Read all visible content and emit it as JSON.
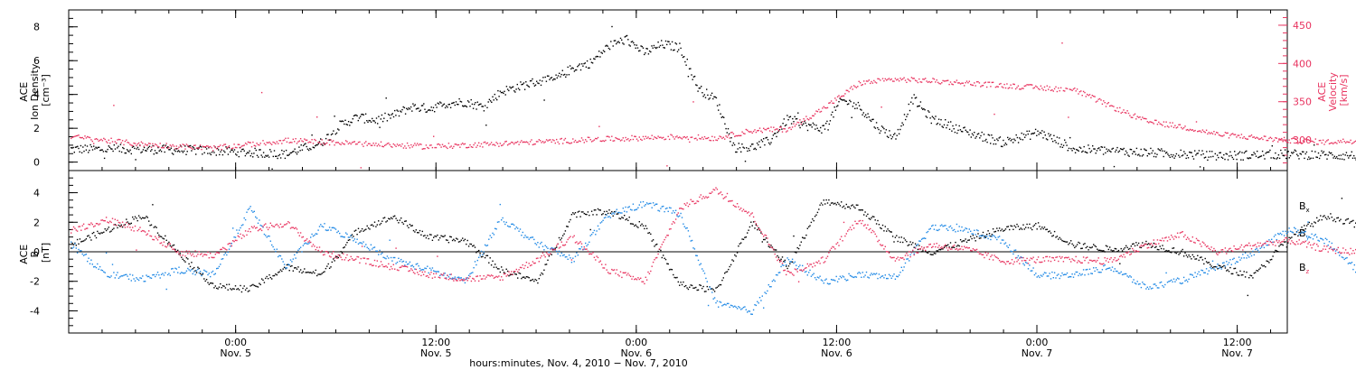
{
  "colors": {
    "density": "#000000",
    "velocity": "#e8335f",
    "bx": "#000000",
    "by": "#1e88e5",
    "bz": "#e8335f"
  },
  "chart_data": [
    {
      "type": "scatter",
      "panel": "top",
      "ylabel_lines": [
        "ACE",
        "Ion Density",
        "[cm⁻³]"
      ],
      "y2label_lines": [
        "ACE",
        "Velocity",
        "[km/s]"
      ],
      "ylim": [
        -0.5,
        9
      ],
      "yticks": [
        0,
        2,
        4,
        6,
        8
      ],
      "y2lim": [
        260,
        470
      ],
      "y2ticks": [
        300,
        350,
        400,
        450
      ],
      "series": [
        {
          "axis": "left",
          "color": "#000000",
          "anchors_h": [
            0,
            4,
            8,
            12,
            14,
            15,
            16,
            17,
            18,
            19,
            20,
            21,
            22,
            23,
            24,
            25,
            26,
            27,
            28,
            29,
            30,
            31,
            32,
            33,
            34,
            35,
            36,
            37,
            38,
            39,
            40,
            41,
            42,
            43,
            44,
            45,
            46,
            47,
            48,
            50,
            52,
            54,
            56,
            60,
            64,
            68,
            72,
            74,
            76,
            80,
            84,
            88,
            92,
            96,
            98,
            100,
            104,
            108,
            112,
            116,
            118,
            120,
            124,
            128,
            130,
            132,
            133
          ],
          "anchors_y": [
            0.8,
            0.8,
            0.7,
            0.5,
            1.2,
            2.2,
            2.7,
            2.5,
            2.8,
            3.3,
            3.2,
            3.5,
            3.6,
            3.3,
            4.2,
            4.5,
            4.8,
            4.9,
            5.6,
            5.9,
            6.9,
            7.3,
            6.5,
            7.0,
            6.8,
            4.4,
            3.7,
            0.9,
            0.9,
            1.3,
            2.6,
            2.2,
            2.0,
            3.7,
            3.3,
            2.1,
            1.5,
            3.8,
            2.6,
            1.8,
            1.2,
            1.8,
            0.8,
            0.6,
            0.4,
            0.5,
            0.4,
            0.5,
            0.6,
            0.7,
            0.8,
            0.9,
            0.7,
            1.1,
            0.8,
            0.8,
            0.6,
            0.5,
            0.3,
            0.3,
            0.3,
            0.3,
            0.3,
            0.4,
            0.4,
            0.5,
            0.5
          ]
        },
        {
          "axis": "right",
          "color": "#e8335f",
          "anchors_h": [
            0,
            2,
            4,
            8,
            12,
            16,
            20,
            24,
            30,
            34,
            36,
            38,
            40,
            42,
            44,
            46,
            48,
            50,
            52,
            54,
            56,
            58,
            60,
            62,
            64,
            66,
            68,
            70,
            72,
            76,
            80,
            86,
            92,
            98,
            104,
            110,
            116,
            120,
            124,
            128,
            130,
            133
          ],
          "anchors_y": [
            305,
            300,
            295,
            290,
            300,
            296,
            292,
            296,
            302,
            305,
            303,
            313,
            315,
            342,
            375,
            380,
            378,
            375,
            372,
            369,
            366,
            345,
            325,
            318,
            308,
            304,
            300,
            298,
            300,
            298,
            300,
            299,
            298,
            294,
            290,
            290,
            293,
            292,
            294,
            296,
            298,
            300
          ]
        }
      ]
    },
    {
      "type": "scatter",
      "panel": "bottom",
      "ylabel_lines": [
        "ACE",
        "B",
        "[nT]"
      ],
      "ylim": [
        -5.5,
        5.5
      ],
      "yticks": [
        -4,
        -2,
        0,
        2,
        4
      ],
      "zero_line": true,
      "legend": [
        "Bₓ",
        "Bᵧ",
        "Bₓ"
      ],
      "legend_labels": [
        "Bx",
        "By",
        "Bz"
      ],
      "series": [
        {
          "name": "Bx",
          "color": "#000000",
          "anchors_h": [
            0,
            4,
            6,
            8,
            10,
            12,
            14,
            16,
            18,
            20,
            22,
            24,
            26,
            28,
            30,
            32,
            34,
            36,
            38,
            40,
            42,
            44,
            46,
            48,
            50,
            52,
            54,
            56,
            58,
            60,
            62,
            64,
            66,
            68,
            70,
            72,
            74,
            76,
            80,
            84,
            88,
            92,
            96,
            100,
            104,
            108,
            112,
            116,
            120,
            124,
            128,
            133
          ],
          "anchors_y": [
            0.5,
            2.5,
            0.0,
            -2.3,
            -2.5,
            -1.0,
            -1.5,
            1.5,
            2.4,
            1.0,
            0.8,
            -1.2,
            -2.0,
            2.6,
            2.8,
            1.7,
            -2.2,
            -2.6,
            2.0,
            -1.0,
            3.5,
            3.0,
            1.0,
            0.0,
            0.8,
            1.6,
            1.8,
            0.5,
            0.2,
            0.6,
            0.0,
            -1.0,
            -1.6,
            1.0,
            2.5,
            1.8,
            0.8,
            -1.5,
            -0.8,
            -1.2,
            2.2,
            2.0,
            2.5,
            3.0,
            1.5,
            2.3,
            1.0,
            0.8,
            0.5,
            0.8,
            -1.0,
            -1.8
          ]
        },
        {
          "name": "By",
          "color": "#1e88e5",
          "anchors_h": [
            0,
            2,
            4,
            6,
            8,
            10,
            12,
            14,
            16,
            18,
            20,
            22,
            24,
            26,
            28,
            30,
            32,
            34,
            36,
            38,
            40,
            42,
            44,
            46,
            48,
            50,
            52,
            54,
            56,
            58,
            60,
            62,
            64,
            66,
            68,
            70,
            72,
            74,
            76,
            80,
            84,
            88,
            92,
            96,
            100,
            104,
            108,
            112,
            116,
            120,
            124,
            128,
            133
          ],
          "anchors_y": [
            0.5,
            -1.5,
            -1.8,
            -1.2,
            -1.5,
            3.0,
            -1.0,
            1.8,
            0.8,
            -0.5,
            -1.2,
            -2.0,
            2.3,
            0.6,
            -0.5,
            2.5,
            3.3,
            2.6,
            -3.5,
            -4.0,
            -0.5,
            -2.0,
            -1.5,
            -1.7,
            1.7,
            1.5,
            0.8,
            -1.6,
            -1.5,
            -1.0,
            -2.4,
            -1.9,
            -1.0,
            0.0,
            1.6,
            0.8,
            -1.5,
            -2.2,
            -1.8,
            -1.4,
            -1.6,
            -1.2,
            -1.5,
            -1.8,
            -2.7,
            -1.2,
            -1.8,
            -2.0,
            1.5,
            0.5,
            1.5,
            0.8,
            0.0
          ]
        },
        {
          "name": "Bz",
          "color": "#e8335f",
          "anchors_h": [
            0,
            2,
            4,
            6,
            8,
            10,
            12,
            14,
            16,
            18,
            20,
            22,
            24,
            26,
            28,
            30,
            32,
            34,
            36,
            38,
            40,
            42,
            44,
            46,
            48,
            50,
            52,
            54,
            56,
            58,
            60,
            62,
            64,
            66,
            68,
            70,
            72,
            74,
            76,
            80,
            84,
            88,
            92,
            96,
            100,
            104,
            108,
            112,
            116,
            120,
            124,
            128,
            133
          ],
          "anchors_y": [
            1.5,
            2.2,
            1.5,
            0.0,
            -0.2,
            1.5,
            2.0,
            0.0,
            -0.5,
            -1.0,
            -1.5,
            -1.8,
            -1.7,
            -0.5,
            1.0,
            -1.2,
            -2.0,
            3.0,
            4.2,
            2.5,
            -1.5,
            -0.5,
            2.3,
            -0.5,
            0.5,
            0.2,
            -0.6,
            -0.5,
            -0.5,
            -0.6,
            0.5,
            1.2,
            0.0,
            0.5,
            0.8,
            0.2,
            0.0,
            0.3,
            -0.5,
            -0.4,
            -0.6,
            -0.7,
            -0.5,
            -0.6,
            -0.8,
            -1.0,
            2.5,
            2.0,
            1.3,
            0.5,
            0.0,
            -0.8,
            -1.8
          ]
        }
      ]
    }
  ],
  "time_axis": {
    "hours_span": 48,
    "hours_before": 10,
    "hours_after": 15,
    "major_tick_hours": [
      10,
      22,
      34,
      46,
      58,
      70,
      82
    ],
    "minor_step_hours": 2,
    "labels": [
      [
        "0:00",
        "Nov. 5"
      ],
      [
        "12:00",
        "Nov. 5"
      ],
      [
        "0:00",
        "Nov. 6"
      ],
      [
        "12:00",
        "Nov. 6"
      ],
      [
        "0:00",
        "Nov. 7"
      ],
      [
        "12:00",
        "Nov. 7"
      ]
    ],
    "label_hours": [
      10,
      22,
      34,
      46,
      58,
      70
    ],
    "xlabel": "hours:minutes, Nov.  4, 2010 − Nov.  7, 2010"
  }
}
